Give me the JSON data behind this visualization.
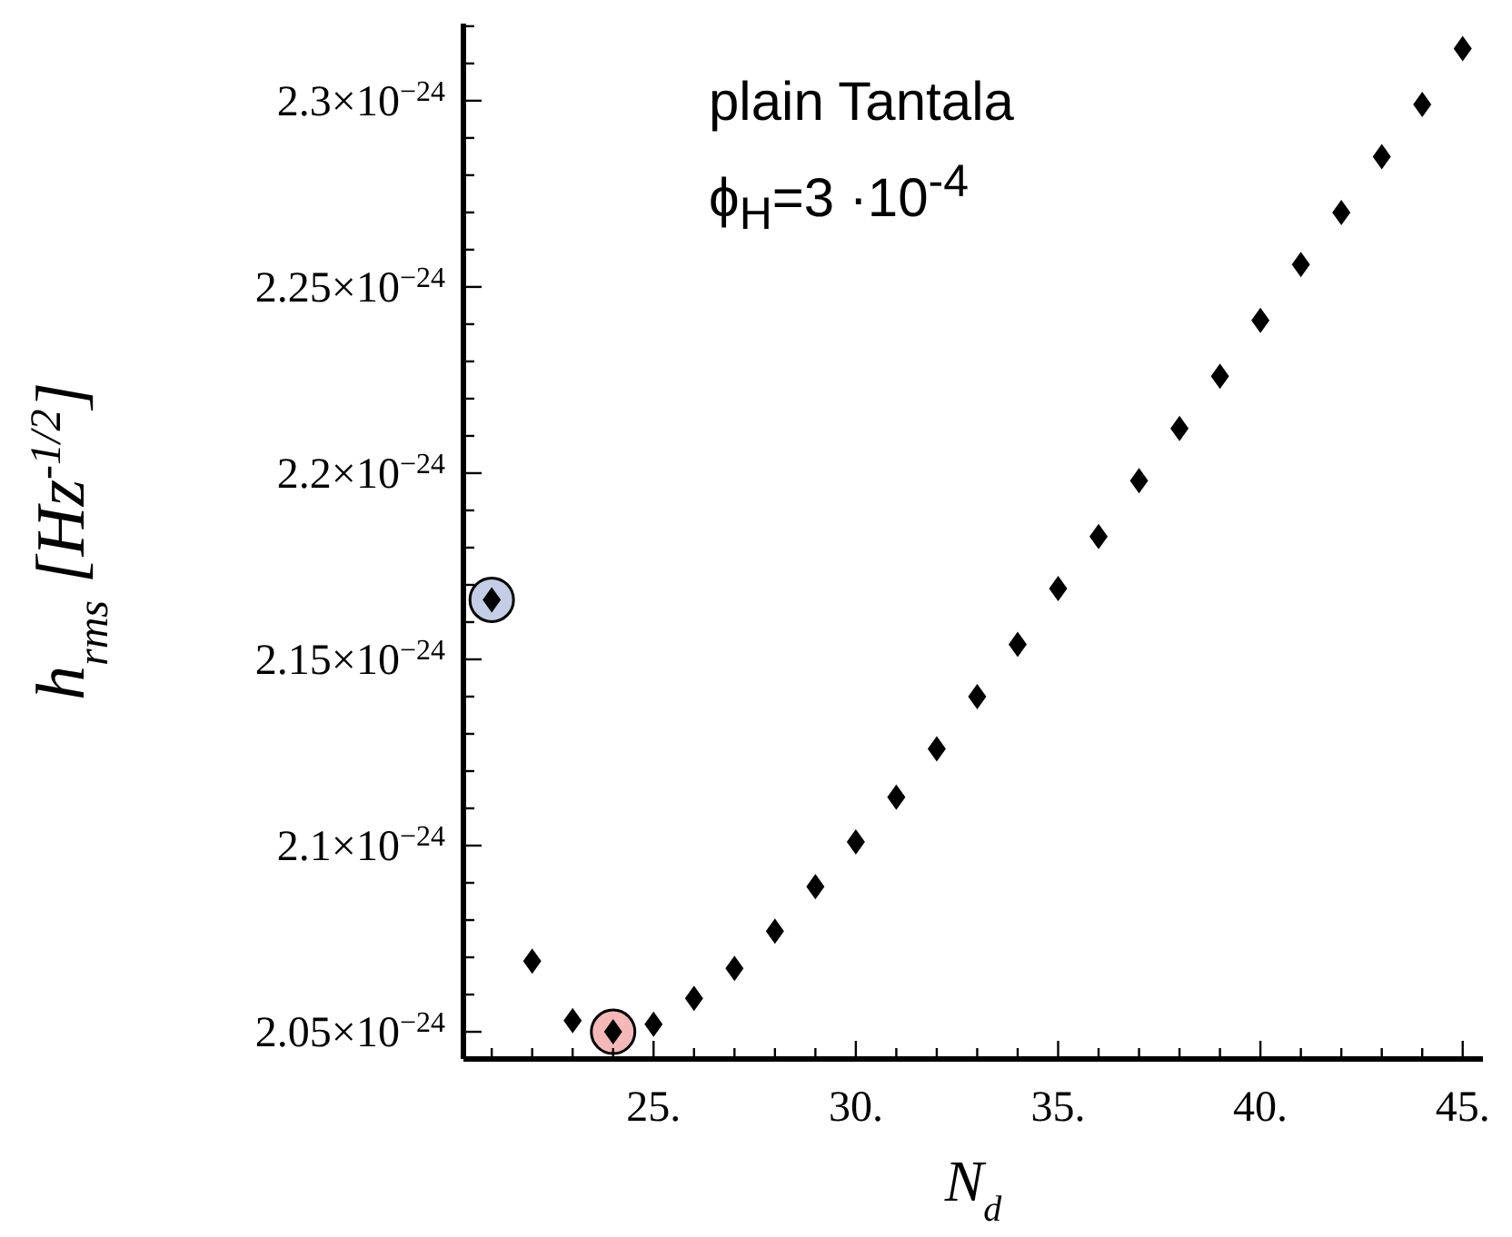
{
  "chart_data": {
    "type": "scatter",
    "xlabel": "N$_{d}$",
    "ylabel": "h$_{rms}$ [Hz$^{-1/2}$]",
    "annotations": [
      "plain Tantala",
      "ϕ$_{H}$=3 ·10$^{-4}$"
    ],
    "x": [
      21,
      22,
      23,
      24,
      25,
      26,
      27,
      28,
      29,
      30,
      31,
      32,
      33,
      34,
      35,
      36,
      37,
      38,
      39,
      40,
      41,
      42,
      43,
      44,
      45
    ],
    "series": [
      {
        "marker": "circle",
        "x": [
          21,
          24
        ],
        "colors": [
          "#c3cde5",
          "#f5b8b8"
        ],
        "values": [
          2.166e-24,
          2.05e-24
        ]
      },
      {
        "color": "#000000",
        "marker": "diamond",
        "values": [
          2.166e-24,
          2.069e-24,
          2.053e-24,
          2.05e-24,
          2.052e-24,
          2.059e-24,
          2.067e-24,
          2.077e-24,
          2.089e-24,
          2.101e-24,
          2.113e-24,
          2.126e-24,
          2.14e-24,
          2.154e-24,
          2.169e-24,
          2.183e-24,
          2.198e-24,
          2.212e-24,
          2.226e-24,
          2.241e-24,
          2.256e-24,
          2.27e-24,
          2.285e-24,
          2.299e-24,
          2.314e-24
        ]
      }
    ],
    "xlim": [
      20.3,
      45.5
    ],
    "ylim": [
      2.0427e-24,
      2.3207e-24
    ],
    "xticks": [
      {
        "value": 21,
        "label": null
      },
      {
        "value": 22,
        "label": null
      },
      {
        "value": 23,
        "label": null
      },
      {
        "value": 24,
        "label": null
      },
      {
        "value": 25,
        "label": "25."
      },
      {
        "value": 26,
        "label": null
      },
      {
        "value": 27,
        "label": null
      },
      {
        "value": 28,
        "label": null
      },
      {
        "value": 29,
        "label": null
      },
      {
        "value": 30,
        "label": "30."
      },
      {
        "value": 31,
        "label": null
      },
      {
        "value": 32,
        "label": null
      },
      {
        "value": 33,
        "label": null
      },
      {
        "value": 34,
        "label": null
      },
      {
        "value": 35,
        "label": "35."
      },
      {
        "value": 36,
        "label": null
      },
      {
        "value": 37,
        "label": null
      },
      {
        "value": 38,
        "label": null
      },
      {
        "value": 39,
        "label": null
      },
      {
        "value": 40,
        "label": "40."
      },
      {
        "value": 41,
        "label": null
      },
      {
        "value": 42,
        "label": null
      },
      {
        "value": 43,
        "label": null
      },
      {
        "value": 44,
        "label": null
      },
      {
        "value": 45,
        "label": "45."
      }
    ],
    "yticks": [
      {
        "value": 2.05e-24,
        "label": "2.05×10$^{−24}$"
      },
      {
        "value": 2.06e-24,
        "label": null
      },
      {
        "value": 2.07e-24,
        "label": null
      },
      {
        "value": 2.08e-24,
        "label": null
      },
      {
        "value": 2.09e-24,
        "label": null
      },
      {
        "value": 2.1e-24,
        "label": "2.1×10$^{−24}$"
      },
      {
        "value": 2.11e-24,
        "label": null
      },
      {
        "value": 2.12e-24,
        "label": null
      },
      {
        "value": 2.13e-24,
        "label": null
      },
      {
        "value": 2.14e-24,
        "label": null
      },
      {
        "value": 2.15e-24,
        "label": "2.15×10$^{−24}$"
      },
      {
        "value": 2.16e-24,
        "label": null
      },
      {
        "value": 2.17e-24,
        "label": null
      },
      {
        "value": 2.18e-24,
        "label": null
      },
      {
        "value": 2.19e-24,
        "label": null
      },
      {
        "value": 2.2e-24,
        "label": "2.2×10$^{−24}$"
      },
      {
        "value": 2.21e-24,
        "label": null
      },
      {
        "value": 2.22e-24,
        "label": null
      },
      {
        "value": 2.23e-24,
        "label": null
      },
      {
        "value": 2.24e-24,
        "label": null
      },
      {
        "value": 2.25e-24,
        "label": "2.25×10$^{−24}$"
      },
      {
        "value": 2.26e-24,
        "label": null
      },
      {
        "value": 2.27e-24,
        "label": null
      },
      {
        "value": 2.28e-24,
        "label": null
      },
      {
        "value": 2.29e-24,
        "label": null
      },
      {
        "value": 2.3e-24,
        "label": "2.3×10$^{−24}$"
      },
      {
        "value": 2.31e-24,
        "label": null
      },
      {
        "value": 2.32e-24,
        "label": null
      }
    ],
    "grid": false,
    "legend": false
  }
}
